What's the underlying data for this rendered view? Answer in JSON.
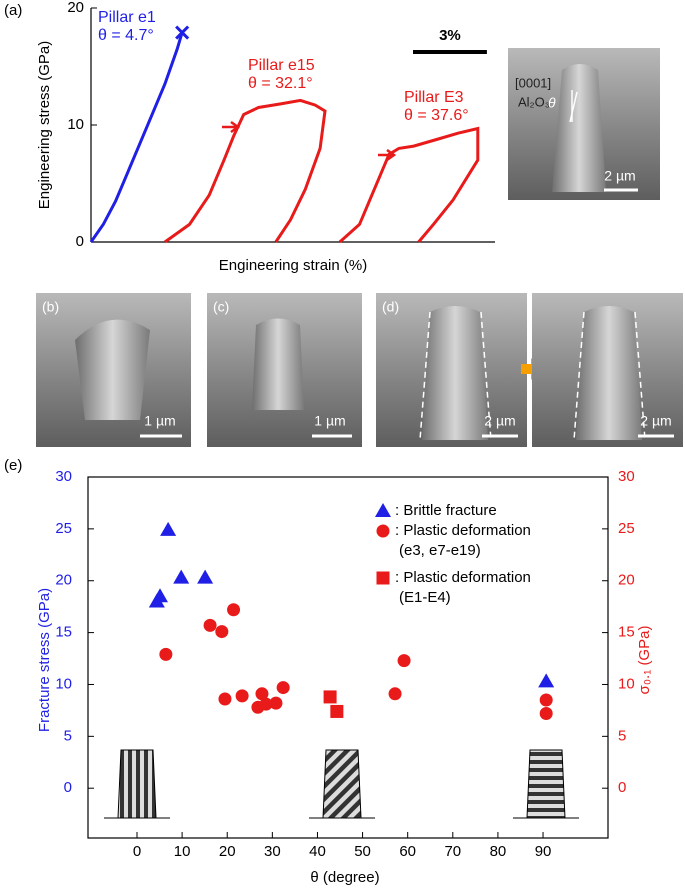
{
  "figure_labels": {
    "a": "(a)",
    "e": "(e)"
  },
  "images": [
    {
      "label": "(b)",
      "scale_bar": "1 µm"
    },
    {
      "label": "(c)",
      "scale_bar": "1 µm"
    },
    {
      "label": "(d)",
      "scale_bar": "2 µm"
    },
    {
      "scale_bar": "2 µm"
    }
  ],
  "chart_data": [
    {
      "type": "line",
      "x_label": "Engineering strain (%)",
      "y_label": "Engineering stress (GPa)",
      "xlim": [
        0,
        16.4
      ],
      "ylim": [
        0,
        20
      ],
      "yticks": [
        0,
        10,
        20
      ],
      "scale_bar": {
        "label": "3%",
        "value": 3
      },
      "series": [
        {
          "name": "Pillar e1",
          "annotation": "θ = 4.7°",
          "color": "#1f1fe6",
          "end_marker": "x",
          "x": [
            0,
            0.5,
            1,
            1.5,
            2,
            2.5,
            3,
            3.5,
            3.7
          ],
          "values": [
            0,
            1.5,
            3.5,
            6,
            8.5,
            11,
            13.5,
            16.5,
            17.9
          ]
        },
        {
          "name": "Pillar e15",
          "annotation": "θ = 32.1°",
          "color": "#e81a1a",
          "x": [
            3.0,
            4.0,
            4.8,
            5.4,
            5.8,
            6.2,
            6.8,
            7.7,
            8.5,
            9.1,
            9.5,
            9.3,
            8.7,
            8.1,
            7.5
          ],
          "values": [
            0,
            1.5,
            4.0,
            7.0,
            9.1,
            10.9,
            11.5,
            11.8,
            12.1,
            11.7,
            11.2,
            8.0,
            4.5,
            1.9,
            0
          ]
        },
        {
          "name": "Pillar E3",
          "annotation": "θ = 37.6°",
          "color": "#e81a1a",
          "x": [
            10.1,
            10.9,
            11.5,
            12.1,
            12.5,
            13.1,
            14.1,
            14.9,
            15.7,
            15.7,
            14.7,
            13.9,
            13.3
          ],
          "values": [
            0,
            1.5,
            4.5,
            7.5,
            8.0,
            8.2,
            8.8,
            9.3,
            9.7,
            7.0,
            3.6,
            1.5,
            0
          ]
        }
      ],
      "inset": {
        "direction": "[0001]",
        "material": "Al₂O₃",
        "angle": "θ",
        "scale_bar": "2 µm"
      }
    },
    {
      "type": "scatter",
      "x_label": "θ (degree)",
      "y_label": "Fracture stress (GPa)",
      "y2_label": "σ₀.₁ (GPa)",
      "xlim": [
        -10.86,
        104.4
      ],
      "xticks": [
        0,
        10,
        20,
        30,
        40,
        50,
        60,
        70,
        80,
        90
      ],
      "ylim": [
        -4.8,
        30
      ],
      "yticks": [
        0,
        5,
        10,
        15,
        20,
        25,
        30
      ],
      "y2lim": [
        -4.8,
        30
      ],
      "y2ticks": [
        0,
        5,
        10,
        15,
        20,
        25,
        30
      ],
      "y_color": "#1f1fe6",
      "y2_color": "#e81a1a",
      "series": [
        {
          "name": ": Brittle fracture",
          "marker": "triangle",
          "color": "#1f1fe6",
          "x": [
            6.9,
            5.1,
            4.4,
            9.8,
            15.1,
            90.7
          ],
          "values": [
            24.9,
            18.5,
            18.0,
            20.3,
            20.3,
            10.3
          ]
        },
        {
          "name": ": Plastic deformation",
          "name_line2": "(e3, e7-e19)",
          "marker": "circle",
          "color": "#e81a1a",
          "axis": "y2",
          "x": [
            6.4,
            16.2,
            18.8,
            21.4,
            19.5,
            23.3,
            26.8,
            27.7,
            28.6,
            30.8,
            32.4,
            57.2,
            59.2,
            90.7,
            90.7
          ],
          "values": [
            12.9,
            15.7,
            15.1,
            17.2,
            8.6,
            8.9,
            7.8,
            9.1,
            8.1,
            8.2,
            9.7,
            9.1,
            12.3,
            8.5,
            7.2
          ]
        },
        {
          "name": ": Plastic deformation",
          "name_line2": "(E1-E4)",
          "marker": "square",
          "color": "#e81a1a",
          "axis": "y2",
          "x": [
            42.8,
            44.3
          ],
          "values": [
            8.8,
            7.4
          ]
        }
      ]
    }
  ]
}
